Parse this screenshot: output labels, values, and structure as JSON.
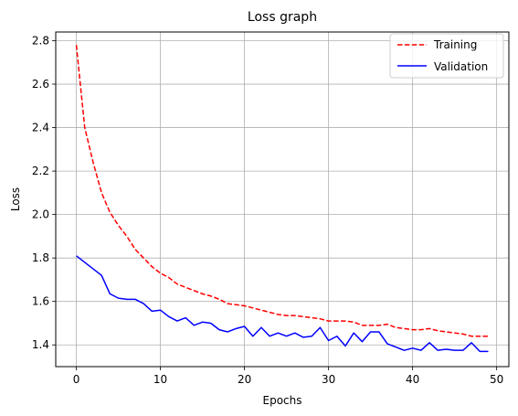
{
  "chart_data": {
    "type": "line",
    "title": "Loss graph",
    "xlabel": "Epochs",
    "ylabel": "Loss",
    "xlim": [
      -2.45,
      51.45
    ],
    "ylim": [
      1.3,
      2.84
    ],
    "xticks": [
      0,
      10,
      20,
      30,
      40,
      50
    ],
    "xtick_labels": [
      "0",
      "10",
      "20",
      "30",
      "40",
      "50"
    ],
    "yticks": [
      1.4,
      1.6,
      1.8,
      2.0,
      2.2,
      2.4,
      2.6,
      2.8
    ],
    "ytick_labels": [
      "1.4",
      "1.6",
      "1.8",
      "2.0",
      "2.2",
      "2.4",
      "2.6",
      "2.8"
    ],
    "grid": true,
    "legend_position": "top-right",
    "x": [
      0,
      1,
      2,
      3,
      4,
      5,
      6,
      7,
      8,
      9,
      10,
      11,
      12,
      13,
      14,
      15,
      16,
      17,
      18,
      19,
      20,
      21,
      22,
      23,
      24,
      25,
      26,
      27,
      28,
      29,
      30,
      31,
      32,
      33,
      34,
      35,
      36,
      37,
      38,
      39,
      40,
      41,
      42,
      43,
      44,
      45,
      46,
      47,
      48,
      49
    ],
    "series": [
      {
        "name": "Training",
        "color": "#ff0000",
        "dash": "dashed",
        "values": [
          2.78,
          2.4,
          2.24,
          2.1,
          2.01,
          1.95,
          1.9,
          1.84,
          1.8,
          1.76,
          1.73,
          1.71,
          1.68,
          1.665,
          1.65,
          1.635,
          1.625,
          1.61,
          1.59,
          1.585,
          1.58,
          1.57,
          1.56,
          1.55,
          1.54,
          1.535,
          1.535,
          1.53,
          1.525,
          1.52,
          1.51,
          1.51,
          1.51,
          1.505,
          1.49,
          1.49,
          1.49,
          1.495,
          1.48,
          1.475,
          1.47,
          1.47,
          1.475,
          1.465,
          1.46,
          1.455,
          1.45,
          1.44,
          1.44,
          1.44
        ]
      },
      {
        "name": "Validation",
        "color": "#0000ff",
        "dash": "solid",
        "values": [
          1.81,
          1.78,
          1.75,
          1.72,
          1.635,
          1.615,
          1.61,
          1.61,
          1.59,
          1.555,
          1.56,
          1.53,
          1.51,
          1.525,
          1.49,
          1.505,
          1.5,
          1.47,
          1.46,
          1.475,
          1.485,
          1.44,
          1.48,
          1.44,
          1.455,
          1.44,
          1.455,
          1.435,
          1.44,
          1.48,
          1.42,
          1.44,
          1.395,
          1.455,
          1.415,
          1.46,
          1.46,
          1.405,
          1.39,
          1.375,
          1.385,
          1.375,
          1.41,
          1.375,
          1.38,
          1.375,
          1.375,
          1.41,
          1.37,
          1.37
        ]
      }
    ]
  }
}
